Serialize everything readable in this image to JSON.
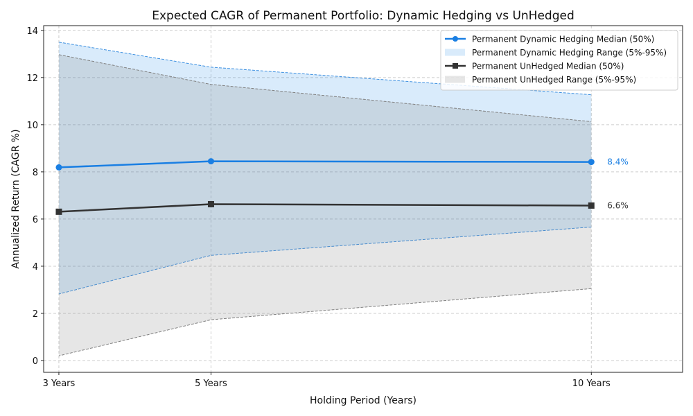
{
  "chart_data": {
    "type": "line",
    "title": "Expected CAGR of Permanent Portfolio: Dynamic Hedging vs UnHedged",
    "xlabel": "Holding Period (Years)",
    "ylabel": "Annualized Return (CAGR %)",
    "x": [
      3,
      5,
      10
    ],
    "x_tick_labels": [
      "3 Years",
      "5 Years",
      "10 Years"
    ],
    "xlim": [
      2.8,
      11.2
    ],
    "ylim": [
      -0.5,
      14.2
    ],
    "y_ticks": [
      0,
      2,
      4,
      6,
      8,
      10,
      12,
      14
    ],
    "grid": true,
    "legend_position": "top-right",
    "series": [
      {
        "name": "Permanent Dynamic Hedging Median (50%)",
        "kind": "line",
        "marker": "circle",
        "color": "#1a7fe3",
        "values": [
          8.19,
          8.45,
          8.42
        ]
      },
      {
        "name": "Permanent Dynamic Hedging Range (5%-95%)",
        "kind": "band",
        "color": "#1e88e5",
        "lower": [
          2.82,
          4.46,
          5.66
        ],
        "upper": [
          13.5,
          12.44,
          11.27
        ]
      },
      {
        "name": "Permanent UnHedged Median (50%)",
        "kind": "line",
        "marker": "square",
        "color": "#333333",
        "values": [
          6.31,
          6.63,
          6.57
        ]
      },
      {
        "name": "Permanent UnHedged Range (5%-95%)",
        "kind": "band",
        "color": "#808080",
        "lower": [
          0.2,
          1.73,
          3.05
        ],
        "upper": [
          12.97,
          11.71,
          10.13
        ]
      }
    ],
    "annotations": [
      {
        "text": "8.4%",
        "x": 10,
        "y": 8.42,
        "color": "#1a7fe3"
      },
      {
        "text": "6.6%",
        "x": 10,
        "y": 6.57,
        "color": "#333333"
      }
    ]
  }
}
